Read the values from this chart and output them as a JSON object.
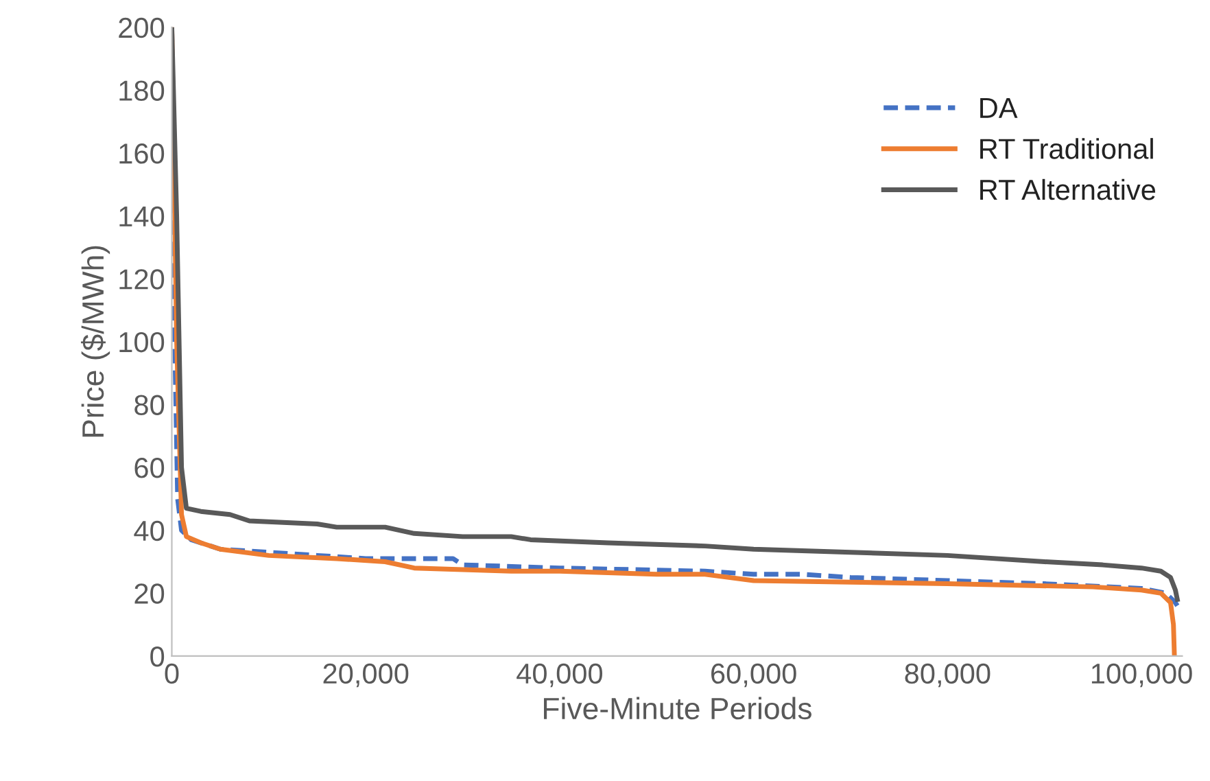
{
  "chart_data": {
    "type": "line",
    "xlabel": "Five-Minute Periods",
    "ylabel": "Price ($/MWh)",
    "xlim": [
      0,
      104200
    ],
    "ylim": [
      0,
      200
    ],
    "xticks": [
      {
        "value": 0,
        "label": "0"
      },
      {
        "value": 20000,
        "label": "20,000"
      },
      {
        "value": 40000,
        "label": "40,000"
      },
      {
        "value": 60000,
        "label": "60,000"
      },
      {
        "value": 80000,
        "label": "80,000"
      },
      {
        "value": 100000,
        "label": "100,000"
      }
    ],
    "yticks": [
      0,
      20,
      40,
      60,
      80,
      100,
      120,
      140,
      160,
      180,
      200
    ],
    "grid": false,
    "legend": "top right",
    "series": [
      {
        "name": "DA",
        "color": "#4472c4",
        "line_style": "dashed",
        "x": [
          0,
          300,
          600,
          1000,
          2000,
          5000,
          10000,
          15000,
          20000,
          29000,
          30000,
          40000,
          55000,
          60000,
          65000,
          70000,
          80000,
          90000,
          100000,
          102500,
          103500,
          103700
        ],
        "values": [
          200,
          100,
          50,
          40,
          37,
          34,
          33,
          32,
          31,
          31,
          29,
          28,
          27,
          26,
          26,
          25,
          24,
          23,
          21.5,
          20,
          17,
          16
        ]
      },
      {
        "name": "RT Traditional",
        "color": "#ed7d31",
        "line_style": "solid",
        "x": [
          0,
          500,
          1000,
          1500,
          3000,
          5000,
          10000,
          17000,
          22000,
          25000,
          35000,
          40000,
          50000,
          55000,
          60000,
          70000,
          80000,
          95000,
          100000,
          102000,
          103000,
          103300,
          103400
        ],
        "values": [
          200,
          100,
          45,
          38,
          36,
          34,
          32,
          31,
          30,
          28,
          27,
          27,
          26,
          26,
          24,
          23.5,
          23,
          22,
          21,
          20,
          17,
          10,
          0
        ]
      },
      {
        "name": "RT Alternative",
        "color": "#595959",
        "line_style": "solid",
        "x": [
          0,
          500,
          1000,
          1500,
          3000,
          6000,
          8000,
          15000,
          17000,
          22000,
          25000,
          30000,
          35000,
          37000,
          45000,
          55000,
          60000,
          70000,
          80000,
          90000,
          96000,
          100000,
          102000,
          103000,
          103500,
          103700
        ],
        "values": [
          200,
          140,
          60,
          47,
          46,
          45,
          43,
          42,
          41,
          41,
          39,
          38,
          38,
          37,
          36,
          35,
          34,
          33,
          32,
          30,
          29,
          28,
          27,
          25,
          21,
          18
        ]
      }
    ]
  }
}
